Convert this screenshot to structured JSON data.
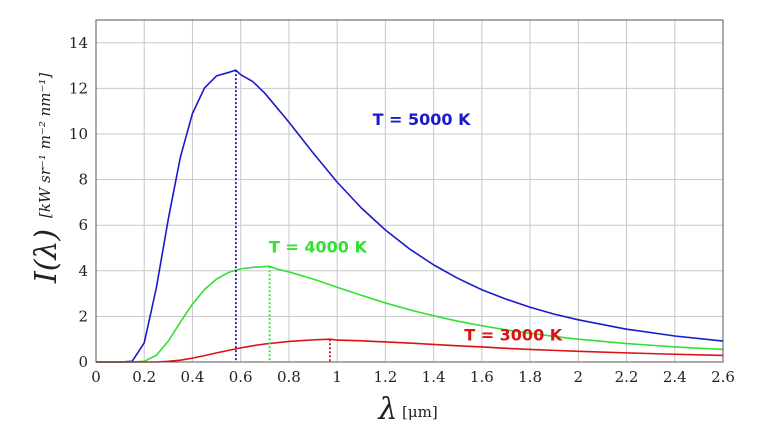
{
  "chart_data": {
    "type": "line",
    "xlabel": {
      "symbol": "λ",
      "unit": "[μm]"
    },
    "ylabel": {
      "symbol": "I(λ)",
      "unit": "[kW sr⁻¹ m⁻² nm⁻¹]"
    },
    "xlim": [
      0,
      2.6
    ],
    "ylim": [
      0,
      15
    ],
    "x_ticks": [
      "0",
      "0.2",
      "0.4",
      "0.6",
      "0.8",
      "1",
      "1.2",
      "1.4",
      "1.6",
      "1.8",
      "2",
      "2.2",
      "2.4",
      "2.6"
    ],
    "y_ticks": [
      "0",
      "2",
      "4",
      "6",
      "8",
      "10",
      "12",
      "14"
    ],
    "grid": true,
    "series": [
      {
        "name": "T = 5000 K",
        "color": "#1a1acc",
        "peak": {
          "x": 0.58,
          "y": 12.8
        },
        "points": [
          [
            0.1,
            0.0
          ],
          [
            0.15,
            0.03
          ],
          [
            0.2,
            0.84
          ],
          [
            0.25,
            3.24
          ],
          [
            0.3,
            6.28
          ],
          [
            0.35,
            8.99
          ],
          [
            0.4,
            10.9
          ],
          [
            0.45,
            12.02
          ],
          [
            0.5,
            12.55
          ],
          [
            0.55,
            12.7
          ],
          [
            0.58,
            12.8
          ],
          [
            0.6,
            12.6
          ],
          [
            0.65,
            12.3
          ],
          [
            0.7,
            11.79
          ],
          [
            0.8,
            10.52
          ],
          [
            0.9,
            9.17
          ],
          [
            1.0,
            7.89
          ],
          [
            1.1,
            6.76
          ],
          [
            1.2,
            5.79
          ],
          [
            1.3,
            4.96
          ],
          [
            1.4,
            4.26
          ],
          [
            1.5,
            3.67
          ],
          [
            1.6,
            3.17
          ],
          [
            1.7,
            2.76
          ],
          [
            1.8,
            2.4
          ],
          [
            1.9,
            2.1
          ],
          [
            2.0,
            1.85
          ],
          [
            2.2,
            1.44
          ],
          [
            2.4,
            1.14
          ],
          [
            2.6,
            0.92
          ]
        ]
      },
      {
        "name": "T = 4000 K",
        "color": "#33e033",
        "peak": {
          "x": 0.72,
          "y": 4.2
        },
        "points": [
          [
            0.15,
            0.0
          ],
          [
            0.2,
            0.03
          ],
          [
            0.25,
            0.29
          ],
          [
            0.3,
            0.92
          ],
          [
            0.35,
            1.75
          ],
          [
            0.4,
            2.54
          ],
          [
            0.45,
            3.18
          ],
          [
            0.5,
            3.64
          ],
          [
            0.55,
            3.93
          ],
          [
            0.6,
            4.09
          ],
          [
            0.65,
            4.15
          ],
          [
            0.72,
            4.2
          ],
          [
            0.75,
            4.08
          ],
          [
            0.8,
            3.95
          ],
          [
            0.9,
            3.64
          ],
          [
            1.0,
            3.28
          ],
          [
            1.1,
            2.93
          ],
          [
            1.2,
            2.59
          ],
          [
            1.3,
            2.29
          ],
          [
            1.4,
            2.03
          ],
          [
            1.5,
            1.79
          ],
          [
            1.6,
            1.59
          ],
          [
            1.7,
            1.41
          ],
          [
            1.8,
            1.26
          ],
          [
            1.9,
            1.12
          ],
          [
            2.0,
            1.0
          ],
          [
            2.2,
            0.81
          ],
          [
            2.4,
            0.66
          ],
          [
            2.6,
            0.55
          ]
        ]
      },
      {
        "name": "T = 3000 K",
        "color": "#dd1111",
        "peak": {
          "x": 0.97,
          "y": 1.0
        },
        "points": [
          [
            0.25,
            0.0
          ],
          [
            0.3,
            0.03
          ],
          [
            0.35,
            0.08
          ],
          [
            0.4,
            0.17
          ],
          [
            0.45,
            0.28
          ],
          [
            0.5,
            0.4
          ],
          [
            0.55,
            0.51
          ],
          [
            0.6,
            0.62
          ],
          [
            0.65,
            0.71
          ],
          [
            0.7,
            0.79
          ],
          [
            0.8,
            0.9
          ],
          [
            0.9,
            0.97
          ],
          [
            0.97,
            1.0
          ],
          [
            1.0,
            0.96
          ],
          [
            1.1,
            0.93
          ],
          [
            1.2,
            0.88
          ],
          [
            1.3,
            0.83
          ],
          [
            1.4,
            0.77
          ],
          [
            1.5,
            0.71
          ],
          [
            1.6,
            0.66
          ],
          [
            1.7,
            0.6
          ],
          [
            1.8,
            0.55
          ],
          [
            1.9,
            0.51
          ],
          [
            2.0,
            0.47
          ],
          [
            2.2,
            0.4
          ],
          [
            2.4,
            0.34
          ],
          [
            2.6,
            0.29
          ]
        ]
      }
    ]
  }
}
